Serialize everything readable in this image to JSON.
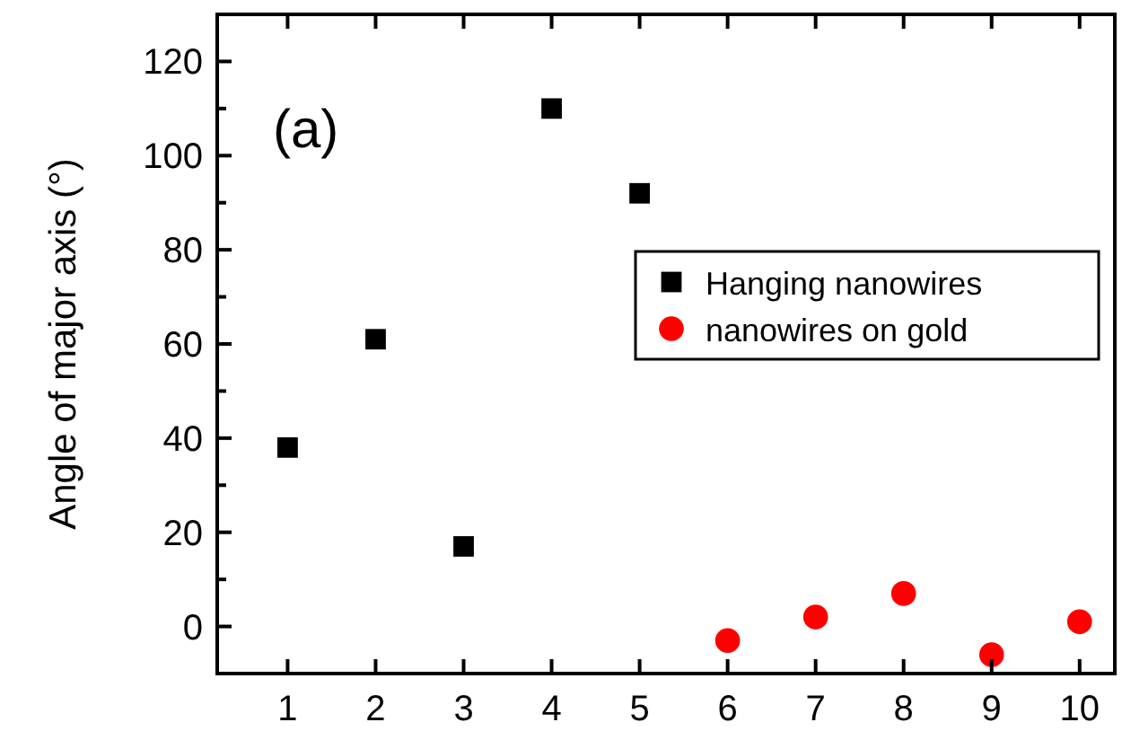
{
  "chart_data": {
    "type": "scatter",
    "ylabel": "Angle of major axis (°)",
    "annotations": [
      "(a)"
    ],
    "x": [
      1,
      2,
      3,
      4,
      5,
      6,
      7,
      8,
      9,
      10
    ],
    "series": [
      {
        "name": "Hanging nanowires",
        "color": "#000000",
        "marker": "square",
        "values": [
          38,
          61,
          17,
          110,
          92,
          null,
          null,
          null,
          null,
          null
        ]
      },
      {
        "name": "nanowires on gold",
        "color": "#ff0000",
        "marker": "circle",
        "values": [
          null,
          null,
          null,
          null,
          null,
          -3,
          2,
          7,
          -6,
          1
        ]
      }
    ],
    "xlim": [
      0.2,
      10.4
    ],
    "xticks": [
      1,
      2,
      3,
      4,
      5,
      6,
      7,
      8,
      9,
      10
    ],
    "ylim": [
      -10,
      130
    ],
    "yticks": [
      0,
      {
        "value": 10,
        "label": null
      },
      20,
      {
        "value": 30,
        "label": null
      },
      40,
      {
        "value": 50,
        "label": null
      },
      60,
      {
        "value": 70,
        "label": null
      },
      80,
      {
        "value": 90,
        "label": null
      },
      100,
      {
        "value": 110,
        "label": null
      },
      120
    ],
    "legend": "right",
    "grid": false
  }
}
